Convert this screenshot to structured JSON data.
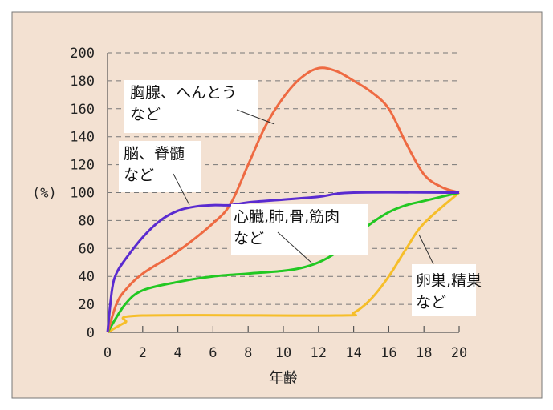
{
  "chart_data": {
    "type": "line",
    "title": "",
    "xlabel": "年齢",
    "ylabel": "(%)",
    "xlim": [
      0,
      20
    ],
    "ylim": [
      0,
      200
    ],
    "xticks": [
      0,
      2,
      4,
      6,
      8,
      10,
      12,
      14,
      16,
      18,
      20
    ],
    "yticks": [
      0,
      20,
      40,
      60,
      80,
      100,
      120,
      140,
      160,
      180,
      200
    ],
    "grid": "horizontal dashed",
    "background": "#f3e1d2",
    "series": [
      {
        "name": "胸腺、へんとう など",
        "label_lines": [
          "胸腺、へんとう",
          "など"
        ],
        "color": "#ee6a42",
        "x": [
          0,
          0.5,
          1,
          2,
          4,
          6,
          7,
          8,
          9,
          10,
          11,
          12,
          13,
          14,
          15,
          16,
          17,
          18,
          19,
          20
        ],
        "y": [
          0,
          20,
          30,
          42,
          58,
          78,
          92,
          120,
          148,
          168,
          182,
          189,
          187,
          180,
          172,
          160,
          135,
          113,
          104,
          100
        ]
      },
      {
        "name": "脳、脊髄 など",
        "label_lines": [
          "脳、脊髄",
          "など"
        ],
        "color": "#5a2bd0",
        "x": [
          0,
          0.25,
          0.5,
          1,
          2,
          3,
          4,
          5,
          6,
          7,
          8,
          10,
          12,
          14,
          20
        ],
        "y": [
          0,
          30,
          42,
          52,
          68,
          80,
          87,
          90,
          91,
          91,
          93,
          95,
          97,
          100,
          100
        ]
      },
      {
        "name": "心臓,肺,骨,筋肉 など",
        "label_lines": [
          "心臓,肺,骨,筋肉",
          "など"
        ],
        "color": "#22c822",
        "x": [
          0,
          1,
          2,
          4,
          6,
          8,
          10,
          11,
          12,
          13,
          14,
          15,
          16,
          17,
          18,
          20
        ],
        "y": [
          0,
          20,
          30,
          36,
          40,
          42,
          44,
          46,
          50,
          57,
          68,
          78,
          86,
          91,
          94,
          100
        ]
      },
      {
        "name": "卵巣,精巣 など",
        "label_lines": [
          "卵巣,精巣",
          "など"
        ],
        "color": "#f6be2a",
        "x": [
          0,
          1,
          2,
          13,
          14,
          15,
          16,
          17,
          18,
          20
        ],
        "y": [
          0,
          7,
          12,
          12,
          14,
          24,
          40,
          60,
          78,
          100
        ]
      }
    ]
  }
}
